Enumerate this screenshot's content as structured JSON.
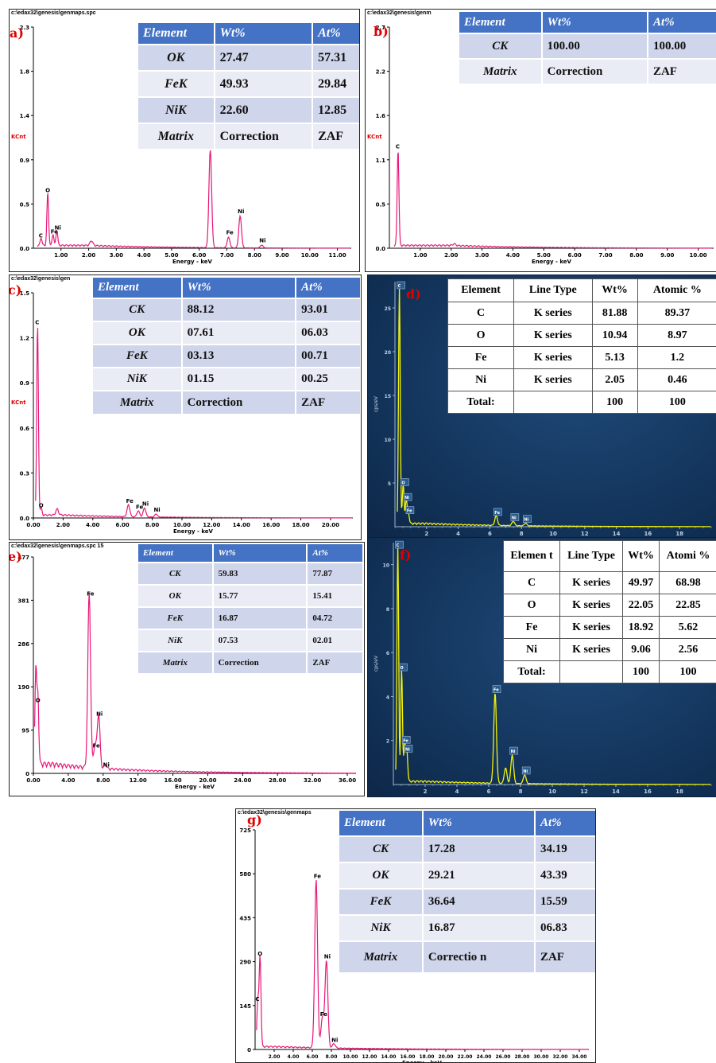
{
  "panels": {
    "a": {
      "label": "a)",
      "path": "c:\\edax32\\genesis\\genmaps.spc",
      "table": {
        "header": [
          "Element",
          "Wt%",
          "At%"
        ],
        "rows": [
          [
            "OK",
            "27.47",
            "57.31"
          ],
          [
            "FeK",
            "49.93",
            "29.84"
          ],
          [
            "NiK",
            "22.60",
            "12.85"
          ],
          [
            "Matrix",
            "Correction",
            "ZAF"
          ]
        ]
      }
    },
    "b": {
      "label": "b)",
      "path": "c:\\edax32\\genesis\\genm",
      "table": {
        "header": [
          "Element",
          "Wt%",
          "At%"
        ],
        "rows": [
          [
            "CK",
            "100.00",
            "100.00"
          ],
          [
            "Matrix",
            "Correction",
            "ZAF"
          ]
        ]
      }
    },
    "c": {
      "label": "c)",
      "path": "c:\\edax32\\genesis\\gen",
      "table": {
        "header": [
          "Element",
          "Wt%",
          "At%"
        ],
        "rows": [
          [
            "CK",
            "88.12",
            "93.01"
          ],
          [
            "OK",
            "07.61",
            "06.03"
          ],
          [
            "FeK",
            "03.13",
            "00.71"
          ],
          [
            "NiK",
            "01.15",
            "00.25"
          ],
          [
            "Matrix",
            "Correction",
            "ZAF"
          ]
        ]
      }
    },
    "d": {
      "label": "d)",
      "table": {
        "header": [
          "Element",
          "Line Type",
          "Wt%",
          "Atomic %"
        ],
        "rows": [
          [
            "C",
            "K series",
            "81.88",
            "89.37"
          ],
          [
            "O",
            "K series",
            "10.94",
            "8.97"
          ],
          [
            "Fe",
            "K series",
            "5.13",
            "1.2"
          ],
          [
            "Ni",
            "K series",
            "2.05",
            "0.46"
          ],
          [
            "Total:",
            "",
            "100",
            "100"
          ]
        ]
      }
    },
    "e": {
      "label": "e)",
      "path": "c:\\edax32\\genesis\\genmaps.spc  15",
      "table": {
        "header": [
          "Element",
          "Wt%",
          "At%"
        ],
        "rows": [
          [
            "CK",
            "59.83",
            "77.87"
          ],
          [
            "OK",
            "15.77",
            "15.41"
          ],
          [
            "FeK",
            "16.87",
            "04.72"
          ],
          [
            "NiK",
            "07.53",
            "02.01"
          ],
          [
            "Matrix",
            "Correction",
            "ZAF"
          ]
        ]
      }
    },
    "f": {
      "label": "f)",
      "table": {
        "header": [
          "Elemen t",
          "Line Type",
          "Wt%",
          "Atomi %"
        ],
        "rows": [
          [
            "C",
            "K series",
            "49.97",
            "68.98"
          ],
          [
            "O",
            "K series",
            "22.05",
            "22.85"
          ],
          [
            "Fe",
            "K series",
            "18.92",
            "5.62"
          ],
          [
            "Ni",
            "K series",
            "9.06",
            "2.56"
          ],
          [
            "Total:",
            "",
            "100",
            "100"
          ]
        ]
      }
    },
    "g": {
      "label": "g)",
      "path": "c:\\edax32\\genesis\\genmaps",
      "table": {
        "header": [
          "Element",
          "Wt%",
          "At%"
        ],
        "rows": [
          [
            "CK",
            "17.28",
            "34.19"
          ],
          [
            "OK",
            "29.21",
            "43.39"
          ],
          [
            "FeK",
            "36.64",
            "15.59"
          ],
          [
            "NiK",
            "16.87",
            "06.83"
          ],
          [
            "Matrix",
            "Correctio n",
            "ZAF"
          ]
        ]
      }
    }
  },
  "chart_data": [
    {
      "id": "a",
      "type": "line",
      "xlabel": "Energy - keV",
      "ylabel": "KCnt",
      "xlim": [
        0,
        11.5
      ],
      "ylim": [
        0,
        2.3
      ],
      "xticks": [
        "1.00",
        "2.00",
        "3.00",
        "4.00",
        "5.00",
        "6.00",
        "7.00",
        "8.00",
        "9.00",
        "10.00",
        "11.00"
      ],
      "yticks": [
        "0.0",
        "0.5",
        "0.9",
        "1.4",
        "1.8",
        "2.3"
      ],
      "color": "#e8177a",
      "peaks": [
        [
          0.28,
          0.08,
          "C"
        ],
        [
          0.52,
          0.55,
          "O"
        ],
        [
          0.71,
          0.12,
          "Fe"
        ],
        [
          0.85,
          0.16,
          "Ni"
        ],
        [
          2.1,
          0.05,
          ""
        ],
        [
          6.4,
          1.02,
          "Fe"
        ],
        [
          7.06,
          0.11,
          "Fe"
        ],
        [
          7.48,
          0.33,
          "Ni"
        ],
        [
          8.26,
          0.03,
          "Ni"
        ]
      ]
    },
    {
      "id": "b",
      "type": "line",
      "xlabel": "Energy - keV",
      "ylabel": "KCnt",
      "xlim": [
        0,
        10.5
      ],
      "ylim": [
        0,
        2.7
      ],
      "xticks": [
        "1.00",
        "2.00",
        "3.00",
        "4.00",
        "5.00",
        "6.00",
        "7.00",
        "8.00",
        "9.00",
        "10.00"
      ],
      "yticks": [
        "0.0",
        "0.5",
        "1.1",
        "1.6",
        "2.2",
        "2.7"
      ],
      "color": "#e8177a",
      "peaks": [
        [
          0.28,
          1.18,
          "C"
        ],
        [
          2.1,
          0.02,
          ""
        ]
      ]
    },
    {
      "id": "c",
      "type": "line",
      "xlabel": "Energy - keV",
      "ylabel": "KCnt",
      "xlim": [
        0,
        21.5
      ],
      "ylim": [
        0,
        1.5
      ],
      "xticks": [
        "0.00",
        "2.00",
        "4.00",
        "6.00",
        "8.00",
        "10.00",
        "12.00",
        "14.00",
        "16.00",
        "18.00",
        "20.00"
      ],
      "yticks": [
        "0.0",
        "0.3",
        "0.6",
        "0.9",
        "1.2",
        "1.5"
      ],
      "color": "#e8177a",
      "peaks": [
        [
          0.28,
          1.27,
          "C"
        ],
        [
          0.52,
          0.05,
          "O"
        ],
        [
          1.6,
          0.04,
          ""
        ],
        [
          6.4,
          0.08,
          "Fe"
        ],
        [
          7.06,
          0.04,
          "Fe"
        ],
        [
          7.48,
          0.06,
          "Ni"
        ],
        [
          8.26,
          0.02,
          "Ni"
        ]
      ]
    },
    {
      "id": "d",
      "type": "line",
      "ylabel": "cps/eV",
      "xlim": [
        0,
        20
      ],
      "ylim": [
        0,
        28
      ],
      "xticks": [
        "2",
        "4",
        "6",
        "8",
        "10",
        "12",
        "14",
        "16",
        "18"
      ],
      "yticks": [
        "5",
        "10",
        "15",
        "20",
        "25"
      ],
      "color": "#f2f20a",
      "peaks": [
        [
          0.28,
          27,
          "C"
        ],
        [
          0.52,
          4.5,
          "O"
        ],
        [
          0.71,
          2.8,
          "Ni"
        ],
        [
          0.85,
          1.3,
          "Fe"
        ],
        [
          6.4,
          1.1,
          "Fe"
        ],
        [
          7.48,
          0.5,
          "Ni"
        ],
        [
          8.26,
          0.3,
          "Ni"
        ]
      ]
    },
    {
      "id": "e",
      "type": "line",
      "xlabel": "Energy - keV",
      "xlim": [
        0,
        37
      ],
      "ylim": [
        0,
        477
      ],
      "xticks": [
        "0.00",
        "4.00",
        "8.00",
        "12.00",
        "16.00",
        "20.00",
        "24.00",
        "28.00",
        "32.00",
        "36.00"
      ],
      "yticks": [
        "0",
        "95",
        "190",
        "286",
        "381",
        "477"
      ],
      "color": "#e8177a",
      "peaks": [
        [
          0.28,
          210,
          ""
        ],
        [
          0.52,
          150,
          "O"
        ],
        [
          6.4,
          385,
          "Fe"
        ],
        [
          7.06,
          50,
          "Fe"
        ],
        [
          7.48,
          120,
          "Ni"
        ],
        [
          8.26,
          8,
          "Ni"
        ]
      ]
    },
    {
      "id": "f",
      "type": "line",
      "ylabel": "cps/eV",
      "xlim": [
        0,
        20
      ],
      "ylim": [
        0,
        11
      ],
      "xticks": [
        "2",
        "4",
        "6",
        "8",
        "10",
        "12",
        "14",
        "16",
        "18"
      ],
      "yticks": [
        "2",
        "4",
        "6",
        "8",
        "10"
      ],
      "color": "#f2f20a",
      "peaks": [
        [
          0.28,
          10.8,
          "C"
        ],
        [
          0.52,
          5.1,
          "O"
        ],
        [
          0.71,
          1.8,
          "Fe"
        ],
        [
          0.85,
          1.4,
          "Ni"
        ],
        [
          6.4,
          4.1,
          "Fe"
        ],
        [
          7.06,
          0.7,
          ""
        ],
        [
          7.48,
          1.3,
          "Ni"
        ],
        [
          8.26,
          0.4,
          "Ni"
        ]
      ]
    },
    {
      "id": "g",
      "type": "line",
      "xlabel": "Energy - keV",
      "xlim": [
        0,
        35
      ],
      "ylim": [
        0,
        725
      ],
      "xticks": [
        "2.00",
        "4.00",
        "6.00",
        "8.00",
        "10.00",
        "12.00",
        "14.00",
        "16.00",
        "18.00",
        "20.00",
        "22.00",
        "24.00",
        "26.00",
        "28.00",
        "30.00",
        "32.00",
        "34.00"
      ],
      "yticks": [
        "0",
        "145",
        "290",
        "435",
        "580",
        "725"
      ],
      "color": "#e8177a",
      "peaks": [
        [
          0.28,
          150,
          "C"
        ],
        [
          0.52,
          300,
          "O"
        ],
        [
          6.4,
          555,
          "Fe"
        ],
        [
          7.06,
          100,
          "Fe"
        ],
        [
          7.48,
          290,
          "Ni"
        ],
        [
          8.26,
          15,
          "Ni"
        ]
      ]
    }
  ]
}
